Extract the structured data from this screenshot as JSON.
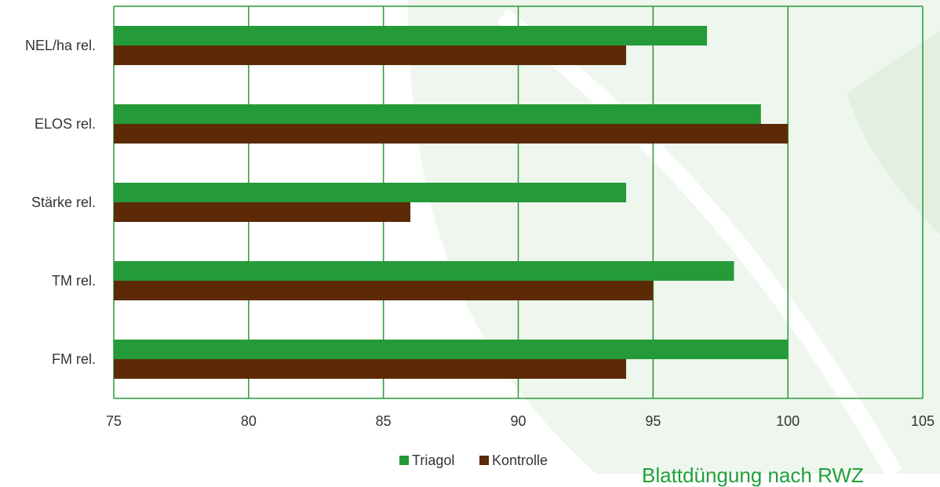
{
  "colors": {
    "background_leaf": "#eef6ee",
    "grid": "#2a9a3a",
    "axis_text": "#333333",
    "footer_text": "#22a03a"
  },
  "footer": {
    "text": "Blattdüngung nach RWZ"
  },
  "chart_data": {
    "type": "bar",
    "orientation": "horizontal",
    "title": "",
    "xlabel": "",
    "ylabel": "",
    "xlim": [
      75,
      105
    ],
    "x_ticks": [
      75,
      80,
      85,
      90,
      95,
      100,
      105
    ],
    "grid": true,
    "legend_position": "bottom",
    "categories": [
      "NEL/ha rel.",
      "ELOS rel.",
      "Stärke rel.",
      "TM rel.",
      "FM rel."
    ],
    "series": [
      {
        "name": "Triagol",
        "color": "#259a38",
        "values": [
          97,
          99,
          94,
          98,
          100
        ]
      },
      {
        "name": "Kontrolle",
        "color": "#5c2a06",
        "values": [
          94,
          100,
          86,
          95,
          94
        ]
      }
    ]
  }
}
